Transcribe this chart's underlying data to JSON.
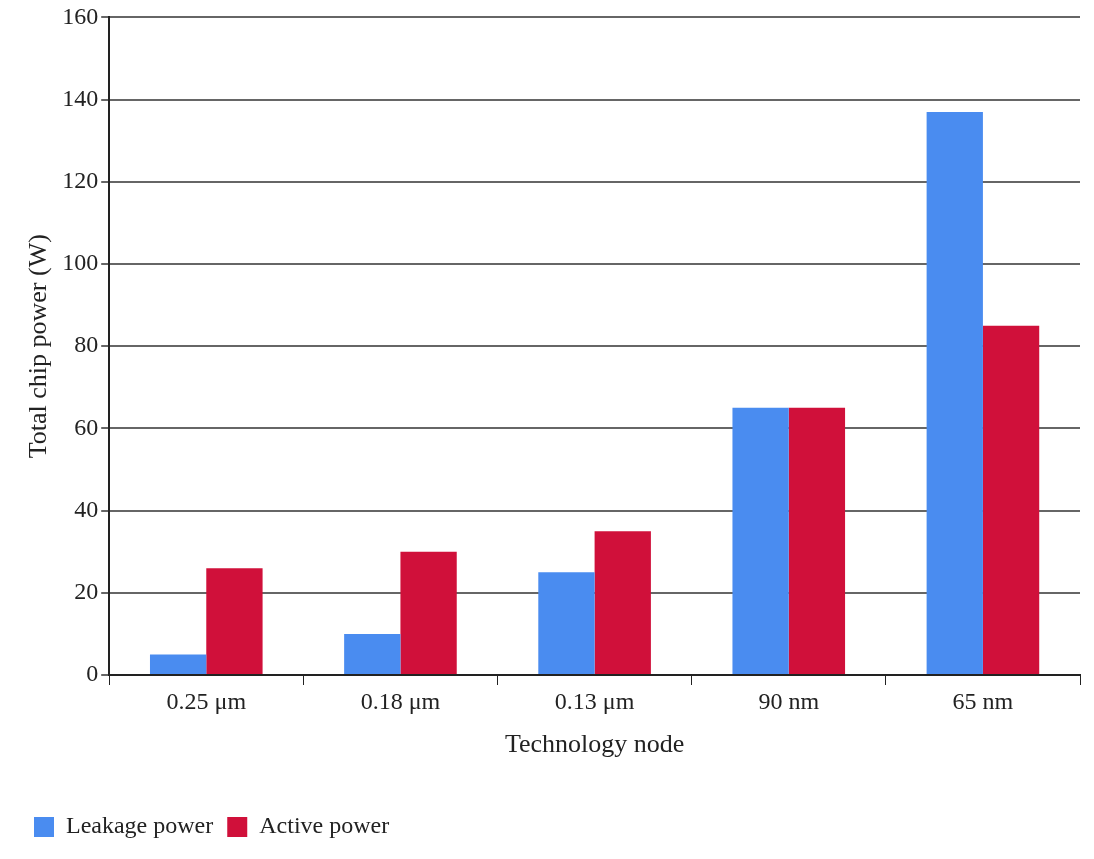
{
  "chart_data": {
    "type": "bar",
    "xlabel": "Technology node",
    "ylabel": "Total chip power (W)",
    "categories": [
      "0.25 μm",
      "0.18 μm",
      "0.13 μm",
      "90 nm",
      "65 nm"
    ],
    "series": [
      {
        "name": "Leakage power",
        "color": "#4a8cf0",
        "values": [
          5,
          10,
          25,
          65,
          137
        ]
      },
      {
        "name": "Active power",
        "color": "#d0103a",
        "values": [
          26,
          30,
          35,
          65,
          85
        ]
      }
    ],
    "ylim": [
      0,
      160
    ],
    "yticks": [
      0,
      20,
      40,
      60,
      80,
      100,
      120,
      140,
      160
    ],
    "grid": "y",
    "legend": "bottom left"
  }
}
